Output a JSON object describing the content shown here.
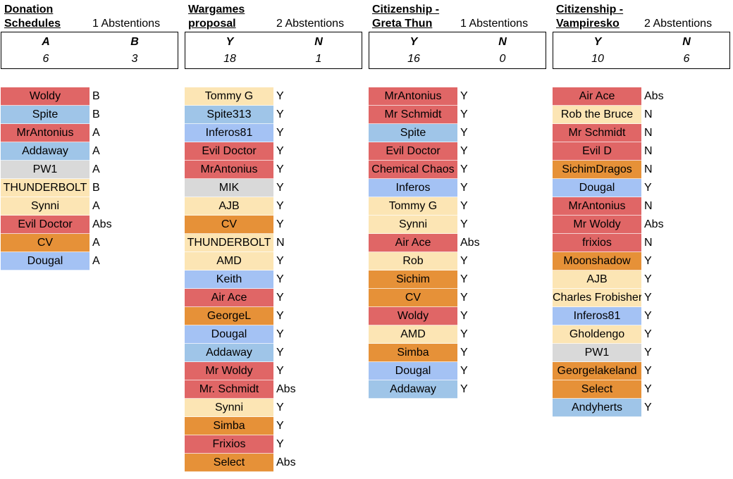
{
  "colors": {
    "red": "#e06666",
    "blue": "#9fc5e8",
    "lightblue": "#a4c2f4",
    "gray": "#d9d9d9",
    "yellow": "#fce5b4",
    "orange": "#e69138"
  },
  "blocks": [
    {
      "title": "Donation\nSchedules",
      "abstentions": "1 Abstentions",
      "head_left": "A",
      "head_right": "B",
      "val_left": "6",
      "val_right": "3",
      "rows": [
        {
          "name": "Woldy",
          "vote": "B",
          "color": "#e06666"
        },
        {
          "name": "Spite",
          "vote": "B",
          "color": "#9fc5e8"
        },
        {
          "name": "MrAntonius",
          "vote": "A",
          "color": "#e06666"
        },
        {
          "name": "Addaway",
          "vote": "A",
          "color": "#9fc5e8"
        },
        {
          "name": "PW1",
          "vote": "A",
          "color": "#d9d9d9"
        },
        {
          "name": "THUNDERBOLT",
          "vote": "B",
          "color": "#fce5b4"
        },
        {
          "name": "Synni",
          "vote": "A",
          "color": "#fce5b4"
        },
        {
          "name": "Evil Doctor",
          "vote": "Abs",
          "color": "#e06666"
        },
        {
          "name": "CV",
          "vote": "A",
          "color": "#e69138"
        },
        {
          "name": "Dougal",
          "vote": "A",
          "color": "#a4c2f4"
        }
      ]
    },
    {
      "title": "Wargames\nproposal",
      "abstentions": "2 Abstentions",
      "head_left": "Y",
      "head_right": "N",
      "val_left": "18",
      "val_right": "1",
      "rows": [
        {
          "name": "Tommy G",
          "vote": "Y",
          "color": "#fce5b4"
        },
        {
          "name": "Spite313",
          "vote": "Y",
          "color": "#9fc5e8"
        },
        {
          "name": "Inferos81",
          "vote": "Y",
          "color": "#a4c2f4"
        },
        {
          "name": "Evil Doctor",
          "vote": "Y",
          "color": "#e06666"
        },
        {
          "name": "MrAntonius",
          "vote": "Y",
          "color": "#e06666"
        },
        {
          "name": "MIK",
          "vote": "Y",
          "color": "#d9d9d9"
        },
        {
          "name": "AJB",
          "vote": "Y",
          "color": "#fce5b4"
        },
        {
          "name": "CV",
          "vote": "Y",
          "color": "#e69138"
        },
        {
          "name": "THUNDERBOLT",
          "vote": "N",
          "color": "#fce5b4"
        },
        {
          "name": "AMD",
          "vote": "Y",
          "color": "#fce5b4"
        },
        {
          "name": "Keith",
          "vote": "Y",
          "color": "#a4c2f4"
        },
        {
          "name": "Air Ace",
          "vote": "Y",
          "color": "#e06666"
        },
        {
          "name": "GeorgeL",
          "vote": "Y",
          "color": "#e69138"
        },
        {
          "name": "Dougal",
          "vote": "Y",
          "color": "#a4c2f4"
        },
        {
          "name": "Addaway",
          "vote": "Y",
          "color": "#9fc5e8"
        },
        {
          "name": "Mr Woldy",
          "vote": "Y",
          "color": "#e06666"
        },
        {
          "name": "Mr. Schmidt",
          "vote": "Abs",
          "color": "#e06666"
        },
        {
          "name": "Synni",
          "vote": "Y",
          "color": "#fce5b4"
        },
        {
          "name": "Simba",
          "vote": "Y",
          "color": "#e69138"
        },
        {
          "name": "Frixios",
          "vote": "Y",
          "color": "#e06666"
        },
        {
          "name": "Select",
          "vote": "Abs",
          "color": "#e69138"
        }
      ]
    },
    {
      "title": "Citizenship -\nGreta Thun",
      "abstentions": "1 Abstentions",
      "head_left": "Y",
      "head_right": "N",
      "val_left": "16",
      "val_right": "0",
      "rows": [
        {
          "name": "MrAntonius",
          "vote": "Y",
          "color": "#e06666"
        },
        {
          "name": "Mr Schmidt",
          "vote": "Y",
          "color": "#e06666"
        },
        {
          "name": "Spite",
          "vote": "Y",
          "color": "#9fc5e8"
        },
        {
          "name": "Evil Doctor",
          "vote": "Y",
          "color": "#e06666"
        },
        {
          "name": "Chemical Chaos",
          "vote": "Y",
          "color": "#e06666"
        },
        {
          "name": "Inferos",
          "vote": "Y",
          "color": "#a4c2f4"
        },
        {
          "name": "Tommy G",
          "vote": "Y",
          "color": "#fce5b4"
        },
        {
          "name": "Synni",
          "vote": "Y",
          "color": "#fce5b4"
        },
        {
          "name": "Air Ace",
          "vote": "Abs",
          "color": "#e06666"
        },
        {
          "name": "Rob",
          "vote": "Y",
          "color": "#fce5b4"
        },
        {
          "name": "Sichim",
          "vote": "Y",
          "color": "#e69138"
        },
        {
          "name": "CV",
          "vote": "Y",
          "color": "#e69138"
        },
        {
          "name": "Woldy",
          "vote": "Y",
          "color": "#e06666"
        },
        {
          "name": "AMD",
          "vote": "Y",
          "color": "#fce5b4"
        },
        {
          "name": "Simba",
          "vote": "Y",
          "color": "#e69138"
        },
        {
          "name": "Dougal",
          "vote": "Y",
          "color": "#a4c2f4"
        },
        {
          "name": "Addaway",
          "vote": "Y",
          "color": "#9fc5e8"
        }
      ]
    },
    {
      "title": "Citizenship -\nVampiresko",
      "abstentions": "2 Abstentions",
      "head_left": "Y",
      "head_right": "N",
      "val_left": "10",
      "val_right": "6",
      "rows": [
        {
          "name": "Air Ace",
          "vote": "Abs",
          "color": "#e06666"
        },
        {
          "name": "Rob the Bruce",
          "vote": "N",
          "color": "#fce5b4"
        },
        {
          "name": "Mr Schmidt",
          "vote": "N",
          "color": "#e06666"
        },
        {
          "name": "Evil D",
          "vote": "N",
          "color": "#e06666"
        },
        {
          "name": "SichimDragos",
          "vote": "N",
          "color": "#e69138"
        },
        {
          "name": "Dougal",
          "vote": "Y",
          "color": "#a4c2f4"
        },
        {
          "name": "MrAntonius",
          "vote": "N",
          "color": "#e06666"
        },
        {
          "name": "Mr Woldy",
          "vote": "Abs",
          "color": "#e06666"
        },
        {
          "name": "frixios",
          "vote": "N",
          "color": "#e06666"
        },
        {
          "name": "Moonshadow",
          "vote": "Y",
          "color": "#e69138"
        },
        {
          "name": "AJB",
          "vote": "Y",
          "color": "#fce5b4"
        },
        {
          "name": "Charles Frobisher",
          "vote": "Y",
          "color": "#fce5b4"
        },
        {
          "name": "Inferos81",
          "vote": "Y",
          "color": "#a4c2f4"
        },
        {
          "name": "Gholdengo",
          "vote": "Y",
          "color": "#fce5b4"
        },
        {
          "name": "PW1",
          "vote": "Y",
          "color": "#d9d9d9"
        },
        {
          "name": "Georgelakeland",
          "vote": "Y",
          "color": "#e69138"
        },
        {
          "name": "Select",
          "vote": "Y",
          "color": "#e69138"
        },
        {
          "name": "Andyherts",
          "vote": "Y",
          "color": "#9fc5e8"
        }
      ]
    }
  ]
}
